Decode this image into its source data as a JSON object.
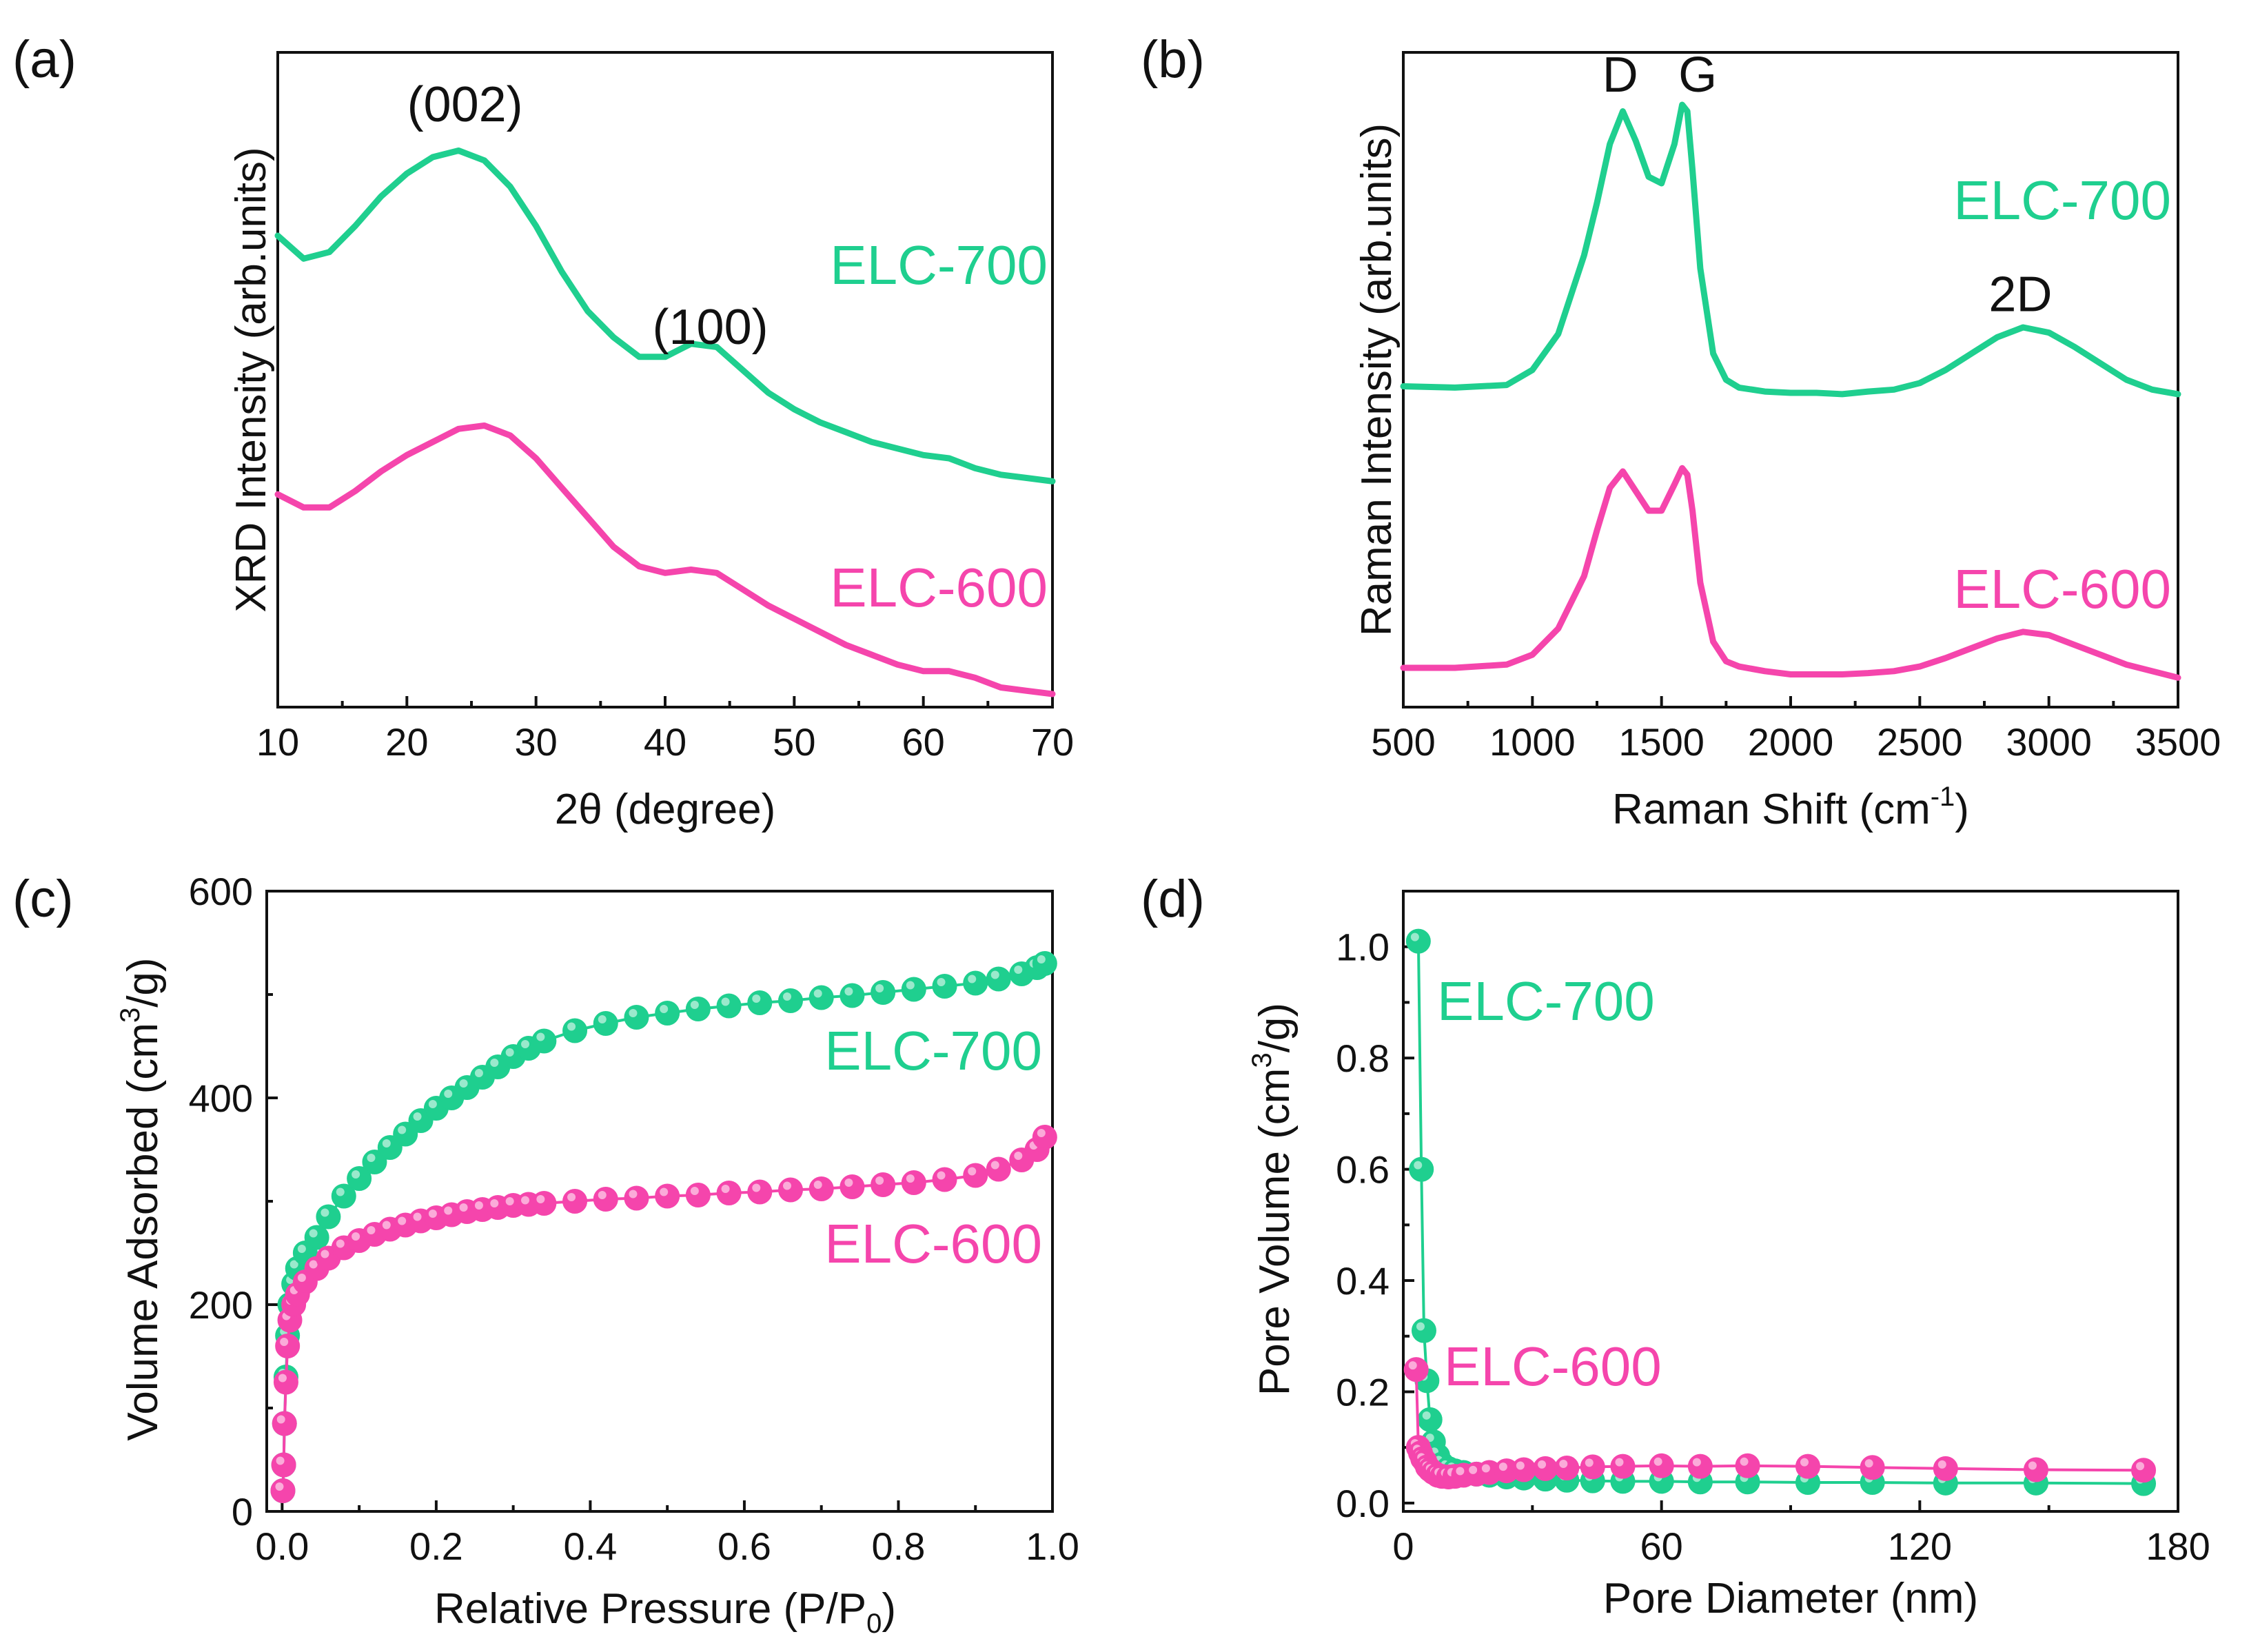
{
  "colors": {
    "elc700": "#1fcf8f",
    "elc600": "#f545ac"
  },
  "chart_data": [
    {
      "panel": "(a)",
      "type": "line",
      "xlabel": "2θ (degree)",
      "ylabel": "XRD Intensity (arb.units)",
      "xlim": [
        10,
        70
      ],
      "ylim": [
        0,
        10
      ],
      "x_ticks": [
        "10",
        "20",
        "30",
        "40",
        "50",
        "60",
        "70"
      ],
      "x_tick_values": [
        10,
        20,
        30,
        40,
        50,
        60,
        70
      ],
      "annotations": [
        {
          "text": "(002)",
          "x": 24.5,
          "y": 8.95
        },
        {
          "text": "(100)",
          "x": 43.5,
          "y": 5.55
        }
      ],
      "series": [
        {
          "name": "ELC-700",
          "label": "ELC-700",
          "color": "#1fcf8f",
          "x": [
            10,
            12,
            14,
            16,
            18,
            20,
            22,
            24,
            26,
            28,
            30,
            32,
            34,
            36,
            38,
            40,
            42,
            44,
            46,
            48,
            50,
            52,
            54,
            56,
            58,
            60,
            62,
            64,
            66,
            68,
            70
          ],
          "y": [
            7.2,
            6.85,
            6.95,
            7.35,
            7.8,
            8.15,
            8.4,
            8.5,
            8.35,
            7.95,
            7.35,
            6.65,
            6.05,
            5.65,
            5.35,
            5.35,
            5.55,
            5.5,
            5.15,
            4.8,
            4.55,
            4.35,
            4.2,
            4.05,
            3.95,
            3.85,
            3.8,
            3.65,
            3.55,
            3.5,
            3.45
          ]
        },
        {
          "name": "ELC-600",
          "label": "ELC-600",
          "color": "#f545ac",
          "x": [
            10,
            12,
            14,
            16,
            18,
            20,
            22,
            24,
            26,
            28,
            30,
            32,
            34,
            36,
            38,
            40,
            42,
            44,
            46,
            48,
            50,
            52,
            54,
            56,
            58,
            60,
            62,
            64,
            66,
            68,
            70
          ],
          "y": [
            3.25,
            3.05,
            3.05,
            3.3,
            3.6,
            3.85,
            4.05,
            4.25,
            4.3,
            4.15,
            3.8,
            3.35,
            2.9,
            2.45,
            2.15,
            2.05,
            2.1,
            2.05,
            1.8,
            1.55,
            1.35,
            1.15,
            0.95,
            0.8,
            0.65,
            0.55,
            0.55,
            0.45,
            0.3,
            0.25,
            0.2
          ]
        }
      ]
    },
    {
      "panel": "(b)",
      "type": "line",
      "xlabel": "Raman Shift (cm",
      "xlabel_sup": "-1",
      "xlabel_tail": ")",
      "ylabel": "Raman Intensity (arb.units)",
      "xlim": [
        500,
        3500
      ],
      "ylim": [
        0,
        10
      ],
      "x_ticks": [
        "500",
        "1000",
        "1500",
        "2000",
        "2500",
        "3000",
        "3500"
      ],
      "x_tick_values": [
        500,
        1000,
        1500,
        2000,
        2500,
        3000,
        3500
      ],
      "annotations": [
        {
          "text": "D",
          "x": 1340,
          "y": 9.4
        },
        {
          "text": "G",
          "x": 1640,
          "y": 9.4
        },
        {
          "text": "2D",
          "x": 2890,
          "y": 6.05
        }
      ],
      "series": [
        {
          "name": "ELC-700",
          "label": "ELC-700",
          "color": "#1fcf8f",
          "x": [
            500,
            700,
            900,
            1000,
            1100,
            1200,
            1250,
            1300,
            1350,
            1400,
            1450,
            1500,
            1550,
            1580,
            1600,
            1620,
            1650,
            1700,
            1750,
            1800,
            1900,
            2000,
            2100,
            2200,
            2300,
            2400,
            2500,
            2600,
            2700,
            2800,
            2900,
            3000,
            3100,
            3200,
            3300,
            3400,
            3500
          ],
          "y": [
            4.9,
            4.88,
            4.92,
            5.15,
            5.7,
            6.9,
            7.7,
            8.6,
            9.1,
            8.65,
            8.1,
            8.0,
            8.6,
            9.2,
            9.1,
            8.2,
            6.7,
            5.4,
            5.0,
            4.88,
            4.82,
            4.8,
            4.8,
            4.78,
            4.82,
            4.85,
            4.95,
            5.15,
            5.4,
            5.65,
            5.8,
            5.72,
            5.5,
            5.25,
            5.0,
            4.85,
            4.78
          ]
        },
        {
          "name": "ELC-600",
          "label": "ELC-600",
          "color": "#f545ac",
          "x": [
            500,
            700,
            900,
            1000,
            1100,
            1200,
            1250,
            1300,
            1350,
            1400,
            1450,
            1500,
            1550,
            1580,
            1600,
            1620,
            1650,
            1700,
            1750,
            1800,
            1900,
            2000,
            2100,
            2200,
            2300,
            2400,
            2500,
            2600,
            2700,
            2800,
            2900,
            3000,
            3100,
            3200,
            3300,
            3400,
            3500
          ],
          "y": [
            0.6,
            0.6,
            0.65,
            0.8,
            1.2,
            2.0,
            2.7,
            3.35,
            3.6,
            3.3,
            3.0,
            3.0,
            3.4,
            3.65,
            3.55,
            3.0,
            1.9,
            1.0,
            0.7,
            0.62,
            0.55,
            0.5,
            0.5,
            0.5,
            0.52,
            0.55,
            0.62,
            0.75,
            0.9,
            1.05,
            1.15,
            1.1,
            0.95,
            0.8,
            0.65,
            0.55,
            0.45
          ]
        }
      ]
    },
    {
      "panel": "(c)",
      "type": "scatter",
      "xlabel": "Relative Pressure (P/P",
      "xlabel_sub": "0",
      "xlabel_tail": ")",
      "ylabel": "Volume Adsorbed (cm",
      "ylabel_sup": "3",
      "ylabel_tail": "/g)",
      "xlim": [
        -0.02,
        1.0
      ],
      "ylim": [
        0,
        600
      ],
      "x_ticks": [
        "0.0",
        "0.2",
        "0.4",
        "0.6",
        "0.8",
        "1.0"
      ],
      "x_tick_values": [
        0.0,
        0.2,
        0.4,
        0.6,
        0.8,
        1.0
      ],
      "y_ticks": [
        "0",
        "200",
        "400",
        "600"
      ],
      "y_tick_values": [
        0,
        200,
        400,
        600
      ],
      "series": [
        {
          "name": "ELC-700",
          "label": "ELC-700",
          "color": "#1fcf8f",
          "x": [
            0.001,
            0.002,
            0.003,
            0.005,
            0.007,
            0.01,
            0.015,
            0.02,
            0.03,
            0.045,
            0.06,
            0.08,
            0.1,
            0.12,
            0.14,
            0.16,
            0.18,
            0.2,
            0.22,
            0.24,
            0.26,
            0.28,
            0.3,
            0.32,
            0.34,
            0.38,
            0.42,
            0.46,
            0.5,
            0.54,
            0.58,
            0.62,
            0.66,
            0.7,
            0.74,
            0.78,
            0.82,
            0.86,
            0.9,
            0.93,
            0.96,
            0.98,
            0.99
          ],
          "y": [
            20,
            45,
            85,
            130,
            170,
            200,
            220,
            235,
            250,
            265,
            285,
            305,
            322,
            338,
            352,
            365,
            378,
            390,
            400,
            410,
            420,
            430,
            440,
            448,
            455,
            465,
            472,
            478,
            482,
            486,
            489,
            492,
            494,
            497,
            499,
            502,
            505,
            508,
            511,
            515,
            520,
            526,
            530
          ]
        },
        {
          "name": "ELC-600",
          "label": "ELC-600",
          "color": "#f545ac",
          "x": [
            0.001,
            0.002,
            0.003,
            0.005,
            0.007,
            0.01,
            0.015,
            0.02,
            0.03,
            0.045,
            0.06,
            0.08,
            0.1,
            0.12,
            0.14,
            0.16,
            0.18,
            0.2,
            0.22,
            0.24,
            0.26,
            0.28,
            0.3,
            0.32,
            0.34,
            0.38,
            0.42,
            0.46,
            0.5,
            0.54,
            0.58,
            0.62,
            0.66,
            0.7,
            0.74,
            0.78,
            0.82,
            0.86,
            0.9,
            0.93,
            0.96,
            0.98,
            0.99
          ],
          "y": [
            20,
            45,
            85,
            125,
            160,
            185,
            200,
            210,
            222,
            235,
            245,
            255,
            262,
            268,
            273,
            277,
            281,
            284,
            287,
            290,
            292,
            294,
            296,
            297,
            298,
            300,
            302,
            303,
            305,
            306,
            308,
            309,
            311,
            312,
            314,
            316,
            318,
            321,
            325,
            331,
            340,
            350,
            362
          ]
        }
      ]
    },
    {
      "panel": "(d)",
      "type": "line",
      "xlabel": "Pore Diameter (nm)",
      "ylabel": "Pore Volume (cm",
      "ylabel_sup": "3",
      "ylabel_tail": "/g)",
      "xlim": [
        0,
        180
      ],
      "ylim": [
        -0.015,
        1.1
      ],
      "x_ticks": [
        "0",
        "60",
        "120",
        "180"
      ],
      "x_tick_values": [
        0,
        60,
        120,
        180
      ],
      "y_ticks": [
        "0.0",
        "0.2",
        "0.4",
        "0.6",
        "0.8",
        "1.0"
      ],
      "y_tick_values": [
        0.0,
        0.2,
        0.4,
        0.6,
        0.8,
        1.0
      ],
      "series": [
        {
          "name": "ELC-700",
          "label": "ELC-700",
          "color": "#1fcf8f",
          "x": [
            3.5,
            4.2,
            4.8,
            5.5,
            6.2,
            7.0,
            8.0,
            9.0,
            10.5,
            12.0,
            14.0,
            17.0,
            20.0,
            24.0,
            28.0,
            33.0,
            38.0,
            44.0,
            51.0,
            60.0,
            69.0,
            80.0,
            94.0,
            109.0,
            126.0,
            147.0,
            172.0
          ],
          "y": [
            1.01,
            0.6,
            0.31,
            0.22,
            0.15,
            0.11,
            0.085,
            0.07,
            0.062,
            0.058,
            0.055,
            0.052,
            0.05,
            0.047,
            0.045,
            0.043,
            0.041,
            0.04,
            0.039,
            0.039,
            0.038,
            0.038,
            0.037,
            0.037,
            0.036,
            0.036,
            0.035
          ]
        },
        {
          "name": "ELC-600",
          "label": "ELC-600",
          "color": "#f545ac",
          "x": [
            3.0,
            3.5,
            4.0,
            4.5,
            5.0,
            5.6,
            6.2,
            7.0,
            8.0,
            9.0,
            10.5,
            12.0,
            14.0,
            17.0,
            20.0,
            24.0,
            28.0,
            33.0,
            38.0,
            44.0,
            51.0,
            60.0,
            69.0,
            80.0,
            94.0,
            109.0,
            126.0,
            147.0,
            172.0
          ],
          "y": [
            0.24,
            0.1,
            0.09,
            0.08,
            0.075,
            0.065,
            0.06,
            0.055,
            0.05,
            0.048,
            0.047,
            0.048,
            0.05,
            0.052,
            0.055,
            0.058,
            0.06,
            0.062,
            0.063,
            0.065,
            0.066,
            0.067,
            0.066,
            0.067,
            0.066,
            0.064,
            0.062,
            0.06,
            0.059
          ]
        }
      ]
    }
  ]
}
